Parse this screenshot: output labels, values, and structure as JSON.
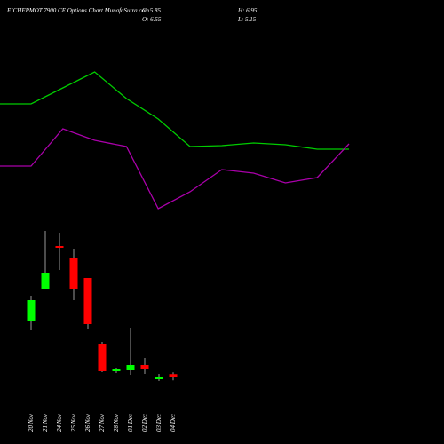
{
  "chart_data": [
    {
      "type": "candlestick",
      "title": "EICHERMOT 7900 CE Options Chart MunafaSutra.com",
      "annotations": [
        "C: 5.85",
        "H: 6.95",
        "O: 6.55",
        "L: 5.15"
      ],
      "categories": [
        "20 Nov",
        "21 Nov",
        "24 Nov",
        "25 Nov",
        "26 Nov",
        "27 Nov",
        "28 Nov",
        "01 Dec",
        "02 Dec",
        "03 Dec",
        "04 Dec"
      ],
      "open": [
        18.6,
        25.8,
        35.4,
        32.8,
        28.2,
        13.4,
        7.2,
        7.4,
        8.6,
        5.4,
        6.55
      ],
      "high": [
        24.2,
        38.8,
        38.4,
        34.8,
        28.2,
        13.8,
        8.0,
        17.0,
        10.2,
        6.6,
        6.95
      ],
      "low": [
        16.4,
        25.8,
        30.0,
        23.2,
        16.6,
        7.0,
        6.8,
        6.4,
        6.6,
        5.0,
        5.15
      ],
      "close": [
        23.2,
        29.4,
        35.0,
        25.6,
        17.8,
        7.2,
        7.6,
        8.6,
        7.6,
        5.8,
        5.85
      ],
      "up_color": "#00ff00",
      "down_color": "#ff0000",
      "wick_color": "#999999",
      "ylim": [
        0,
        50
      ]
    },
    {
      "type": "line",
      "categories": [
        null,
        null,
        null,
        null,
        null,
        null,
        null,
        null,
        null,
        null,
        null,
        null
      ],
      "series": [
        {
          "color": "#00cc00",
          "values": [
            66.5,
            66.5,
            75.5,
            84.5,
            69.5,
            58,
            42.5,
            43,
            44.5,
            43.5,
            41,
            41
          ]
        },
        {
          "color": "#aa00aa",
          "values": [
            31.5,
            31.5,
            52.5,
            46,
            42.5,
            7.5,
            17,
            29.5,
            27.5,
            22,
            25,
            44
          ]
        }
      ],
      "ylim": [
        0,
        100
      ]
    }
  ]
}
